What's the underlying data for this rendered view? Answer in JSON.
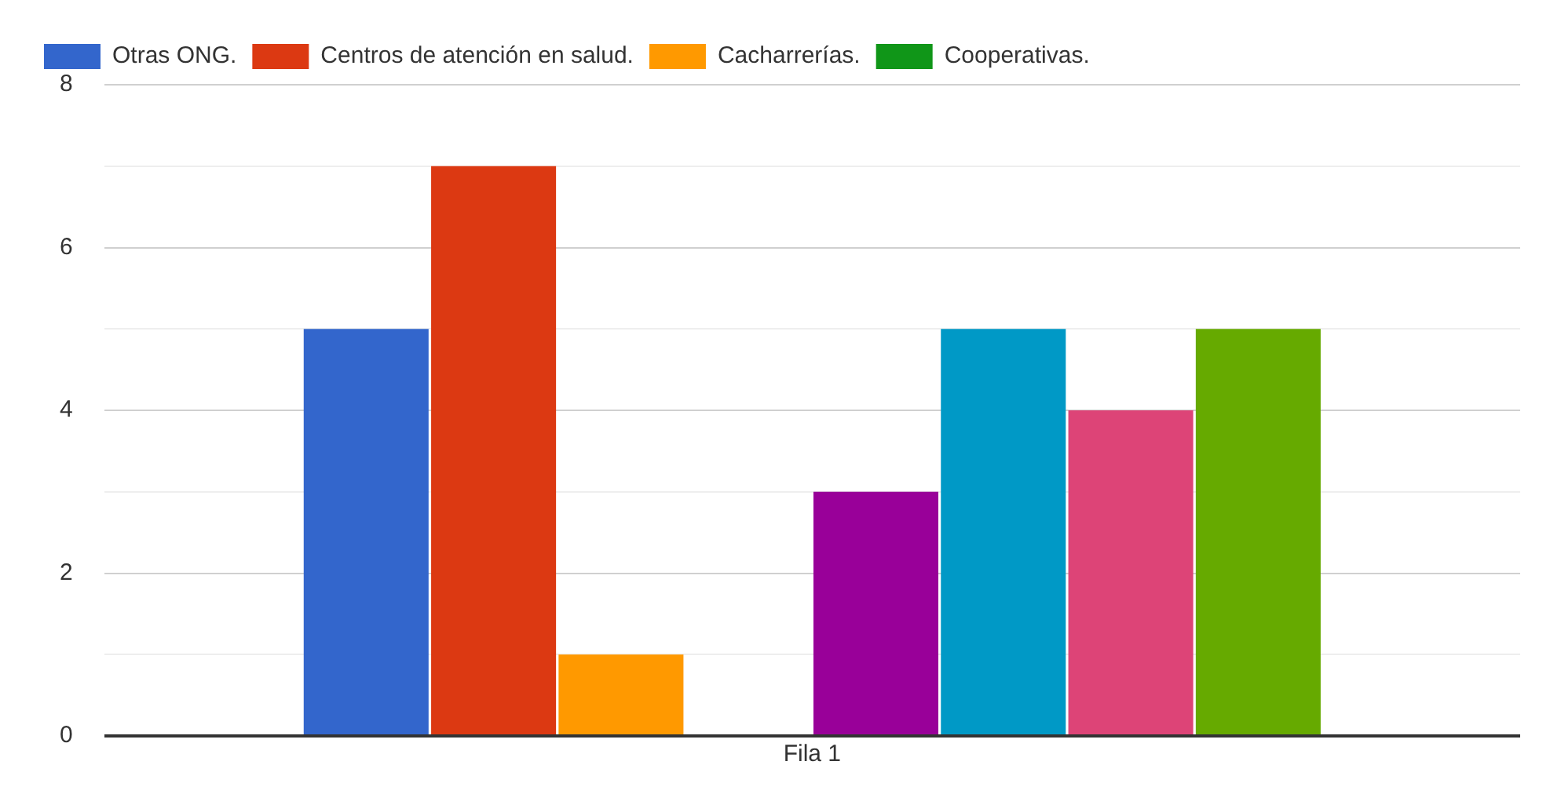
{
  "chart_data": {
    "type": "bar",
    "categories": [
      "Fila 1"
    ],
    "series": [
      {
        "name": "Otras ONG.",
        "color": "#3366cc",
        "values": [
          5
        ]
      },
      {
        "name": "Centros de atención en salud.",
        "color": "#dc3912",
        "values": [
          7
        ]
      },
      {
        "name": "Cacharrerías.",
        "color": "#ff9900",
        "values": [
          1
        ]
      },
      {
        "name": "Cooperativas.",
        "color": "#109618",
        "values": [
          0
        ]
      },
      {
        "color": "#990099",
        "values": [
          3
        ]
      },
      {
        "color": "#0099c6",
        "values": [
          5
        ]
      },
      {
        "color": "#dd4477",
        "values": [
          4
        ]
      },
      {
        "color": "#66aa00",
        "values": [
          5
        ]
      }
    ],
    "ylim": [
      0,
      8
    ],
    "yticks": [
      0,
      {
        "value": 1,
        "label": null
      },
      2,
      {
        "value": 3,
        "label": null
      },
      4,
      {
        "value": 5,
        "label": null
      },
      6,
      {
        "value": 7,
        "label": null
      },
      8
    ],
    "grid": "y",
    "legend": "top left"
  }
}
